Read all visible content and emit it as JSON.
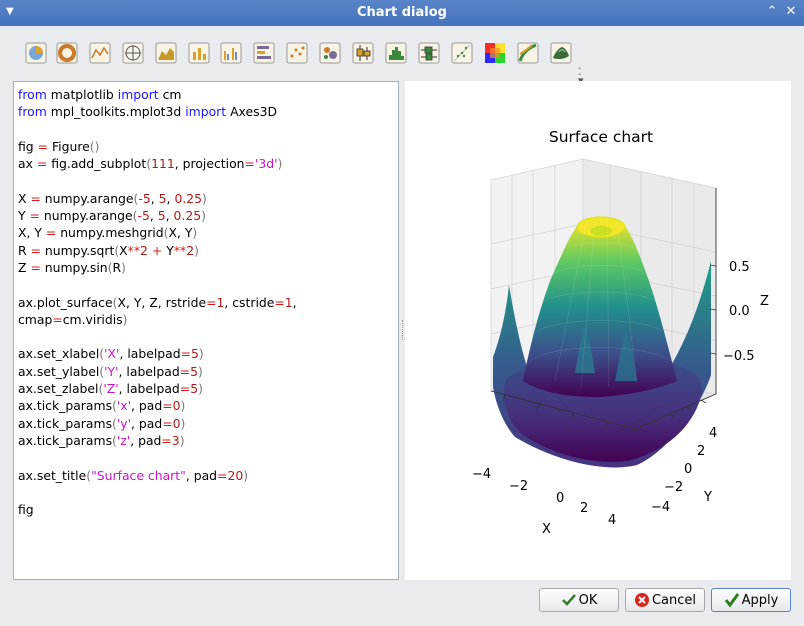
{
  "window": {
    "title": "Chart dialog"
  },
  "toolbar": {
    "tools": [
      {
        "name": "pie-chart-icon",
        "x": 25
      },
      {
        "name": "donut-chart-icon",
        "x": 56
      },
      {
        "name": "line-chart-icon",
        "x": 89
      },
      {
        "name": "polar-chart-icon",
        "x": 122
      },
      {
        "name": "area-chart-icon",
        "x": 155
      },
      {
        "name": "bar-chart-icon",
        "x": 188
      },
      {
        "name": "grouped-bar-chart-icon",
        "x": 220
      },
      {
        "name": "horizontal-bar-chart-icon",
        "x": 253
      },
      {
        "name": "scatter-chart-icon",
        "x": 286
      },
      {
        "name": "bubble-chart-icon",
        "x": 319
      },
      {
        "name": "boxplot-chart-icon",
        "x": 352
      },
      {
        "name": "histogram-chart-icon",
        "x": 385
      },
      {
        "name": "horizontal-boxplot-icon",
        "x": 418
      },
      {
        "name": "scatter-grid-chart-icon",
        "x": 451
      },
      {
        "name": "heatmap-chart-icon",
        "x": 484
      },
      {
        "name": "contour-chart-icon",
        "x": 517
      },
      {
        "name": "surface-chart-icon",
        "x": 550
      }
    ]
  },
  "code": {
    "lines": [
      [
        [
          "kw",
          "from"
        ],
        [
          "t",
          " matplotlib "
        ],
        [
          "kw",
          "import"
        ],
        [
          "t",
          " cm"
        ]
      ],
      [
        [
          "kw",
          "from"
        ],
        [
          "t",
          " mpl_toolkits.mplot3d "
        ],
        [
          "kw",
          "import"
        ],
        [
          "t",
          " Axes3D"
        ]
      ],
      [],
      [
        [
          "t",
          "fig "
        ],
        [
          "op",
          "="
        ],
        [
          "t",
          " Figure"
        ],
        [
          "paren",
          "()"
        ]
      ],
      [
        [
          "t",
          "ax "
        ],
        [
          "op",
          "="
        ],
        [
          "t",
          " fig.add_subplot"
        ],
        [
          "paren",
          "("
        ],
        [
          "num",
          "111"
        ],
        [
          "t",
          ", projection"
        ],
        [
          "op",
          "="
        ],
        [
          "str",
          "'3d'"
        ],
        [
          "paren",
          ")"
        ]
      ],
      [],
      [
        [
          "t",
          "X "
        ],
        [
          "op",
          "="
        ],
        [
          "t",
          " numpy.arange"
        ],
        [
          "paren",
          "("
        ],
        [
          "op",
          "-"
        ],
        [
          "num",
          "5"
        ],
        [
          "t",
          ", "
        ],
        [
          "num",
          "5"
        ],
        [
          "t",
          ", "
        ],
        [
          "num",
          "0.25"
        ],
        [
          "paren",
          ")"
        ]
      ],
      [
        [
          "t",
          "Y "
        ],
        [
          "op",
          "="
        ],
        [
          "t",
          " numpy.arange"
        ],
        [
          "paren",
          "("
        ],
        [
          "op",
          "-"
        ],
        [
          "num",
          "5"
        ],
        [
          "t",
          ", "
        ],
        [
          "num",
          "5"
        ],
        [
          "t",
          ", "
        ],
        [
          "num",
          "0.25"
        ],
        [
          "paren",
          ")"
        ]
      ],
      [
        [
          "t",
          "X, Y "
        ],
        [
          "op",
          "="
        ],
        [
          "t",
          " numpy.meshgrid"
        ],
        [
          "paren",
          "("
        ],
        [
          "t",
          "X, Y"
        ],
        [
          "paren",
          ")"
        ]
      ],
      [
        [
          "t",
          "R "
        ],
        [
          "op",
          "="
        ],
        [
          "t",
          " numpy.sqrt"
        ],
        [
          "paren",
          "("
        ],
        [
          "t",
          "X"
        ],
        [
          "op",
          "**"
        ],
        [
          "num",
          "2"
        ],
        [
          "t",
          " "
        ],
        [
          "op",
          "+"
        ],
        [
          "t",
          " Y"
        ],
        [
          "op",
          "**"
        ],
        [
          "num",
          "2"
        ],
        [
          "paren",
          ")"
        ]
      ],
      [
        [
          "t",
          "Z "
        ],
        [
          "op",
          "="
        ],
        [
          "t",
          " numpy.sin"
        ],
        [
          "paren",
          "("
        ],
        [
          "t",
          "R"
        ],
        [
          "paren",
          ")"
        ]
      ],
      [],
      [
        [
          "t",
          "ax.plot_surface"
        ],
        [
          "paren",
          "("
        ],
        [
          "t",
          "X, Y, Z, rstride"
        ],
        [
          "op",
          "="
        ],
        [
          "num",
          "1"
        ],
        [
          "t",
          ", cstride"
        ],
        [
          "op",
          "="
        ],
        [
          "num",
          "1"
        ],
        [
          "t",
          ","
        ]
      ],
      [
        [
          "t",
          "cmap"
        ],
        [
          "op",
          "="
        ],
        [
          "t",
          "cm.viridis"
        ],
        [
          "paren",
          ")"
        ]
      ],
      [],
      [
        [
          "t",
          "ax.set_xlabel"
        ],
        [
          "paren",
          "("
        ],
        [
          "str",
          "'X'"
        ],
        [
          "t",
          ", labelpad"
        ],
        [
          "op",
          "="
        ],
        [
          "num",
          "5"
        ],
        [
          "paren",
          ")"
        ]
      ],
      [
        [
          "t",
          "ax.set_ylabel"
        ],
        [
          "paren",
          "("
        ],
        [
          "str",
          "'Y'"
        ],
        [
          "t",
          ", labelpad"
        ],
        [
          "op",
          "="
        ],
        [
          "num",
          "5"
        ],
        [
          "paren",
          ")"
        ]
      ],
      [
        [
          "t",
          "ax.set_zlabel"
        ],
        [
          "paren",
          "("
        ],
        [
          "str",
          "'Z'"
        ],
        [
          "t",
          ", labelpad"
        ],
        [
          "op",
          "="
        ],
        [
          "num",
          "5"
        ],
        [
          "paren",
          ")"
        ]
      ],
      [
        [
          "t",
          "ax.tick_params"
        ],
        [
          "paren",
          "("
        ],
        [
          "str",
          "'x'"
        ],
        [
          "t",
          ", pad"
        ],
        [
          "op",
          "="
        ],
        [
          "num",
          "0"
        ],
        [
          "paren",
          ")"
        ]
      ],
      [
        [
          "t",
          "ax.tick_params"
        ],
        [
          "paren",
          "("
        ],
        [
          "str",
          "'y'"
        ],
        [
          "t",
          ", pad"
        ],
        [
          "op",
          "="
        ],
        [
          "num",
          "0"
        ],
        [
          "paren",
          ")"
        ]
      ],
      [
        [
          "t",
          "ax.tick_params"
        ],
        [
          "paren",
          "("
        ],
        [
          "str",
          "'z'"
        ],
        [
          "t",
          ", pad"
        ],
        [
          "op",
          "="
        ],
        [
          "num",
          "3"
        ],
        [
          "paren",
          ")"
        ]
      ],
      [],
      [
        [
          "t",
          "ax.set_title"
        ],
        [
          "paren",
          "("
        ],
        [
          "str",
          "\"Surface chart\""
        ],
        [
          "t",
          ", pad"
        ],
        [
          "op",
          "="
        ],
        [
          "num",
          "20"
        ],
        [
          "paren",
          ")"
        ]
      ],
      [],
      [
        [
          "t",
          "fig"
        ]
      ]
    ]
  },
  "preview": {
    "chart_data": {
      "type": "surface",
      "title": "Surface chart",
      "xlabel": "X",
      "ylabel": "Y",
      "zlabel": "Z",
      "x_ticks": [
        "−4",
        "−2",
        "0",
        "2",
        "4"
      ],
      "y_ticks": [
        "4",
        "2",
        "0",
        "−2",
        "−4"
      ],
      "z_ticks": [
        "0.5",
        "0.0",
        "−0.5"
      ],
      "x_range": [
        -5,
        5
      ],
      "y_range": [
        -5,
        5
      ],
      "z_range": [
        -1,
        1
      ],
      "function": "Z = sin(sqrt(X^2 + Y^2))",
      "colormap": "viridis"
    }
  },
  "buttons": {
    "ok": "OK",
    "cancel": "Cancel",
    "apply": "Apply"
  },
  "colors": {
    "titlebar": "#4d7bc4",
    "keyword": "#1b17ff",
    "operator": "#d01c1c",
    "number": "#b21a1a",
    "string": "#c916c9"
  }
}
